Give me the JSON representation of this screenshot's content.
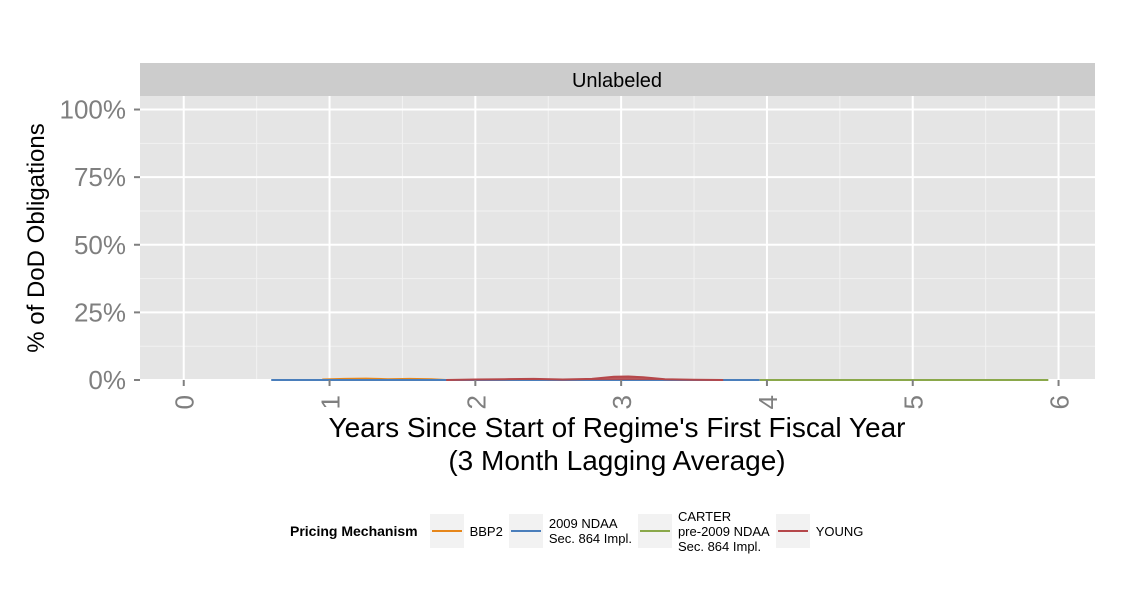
{
  "chart_data": {
    "type": "area",
    "facet_label": "Unlabeled",
    "xlabel": "Years Since Start of Regime's First Fiscal Year\n(3 Month Lagging Average)",
    "ylabel": "% of DoD Obligations",
    "xlim": [
      -0.3,
      6.25
    ],
    "ylim": [
      0,
      1.05
    ],
    "x_ticks": [
      0,
      1,
      2,
      3,
      4,
      5,
      6
    ],
    "y_ticks": [
      0,
      0.25,
      0.5,
      0.75,
      1.0
    ],
    "y_tick_labels": [
      "0%",
      "25%",
      "50%",
      "75%",
      "100%"
    ],
    "grid": true,
    "legend_position": "bottom",
    "legend_title": "Pricing Mechanism",
    "series": [
      {
        "name": "BBP2",
        "color": "#E6861A",
        "x": [
          0.95,
          1.1,
          1.25,
          1.4,
          1.55,
          1.7,
          1.8
        ],
        "values": [
          0.002,
          0.004,
          0.005,
          0.003,
          0.004,
          0.003,
          0.0
        ]
      },
      {
        "name": "2009 NDAA\nSec. 864 Impl.",
        "color": "#4A7EBB",
        "x": [
          0.6,
          1.0,
          1.5,
          2.0,
          2.5,
          3.0,
          3.5,
          3.95
        ],
        "values": [
          0.0,
          0.0,
          0.0,
          0.0,
          0.0,
          0.0,
          0.0,
          0.0
        ]
      },
      {
        "name": "CARTER\npre-2009 NDAA\nSec. 864 Impl.",
        "color": "#8AA84A",
        "x": [
          3.95,
          4.5,
          5.0,
          5.5,
          5.93
        ],
        "values": [
          0.0,
          0.0,
          0.0,
          0.0,
          0.0
        ]
      },
      {
        "name": "YOUNG",
        "color": "#B5474A",
        "x": [
          1.8,
          2.0,
          2.2,
          2.4,
          2.6,
          2.8,
          2.95,
          3.05,
          3.15,
          3.3,
          3.5,
          3.7
        ],
        "values": [
          0.0,
          0.002,
          0.003,
          0.004,
          0.002,
          0.004,
          0.012,
          0.013,
          0.01,
          0.003,
          0.001,
          0.0
        ]
      }
    ]
  }
}
